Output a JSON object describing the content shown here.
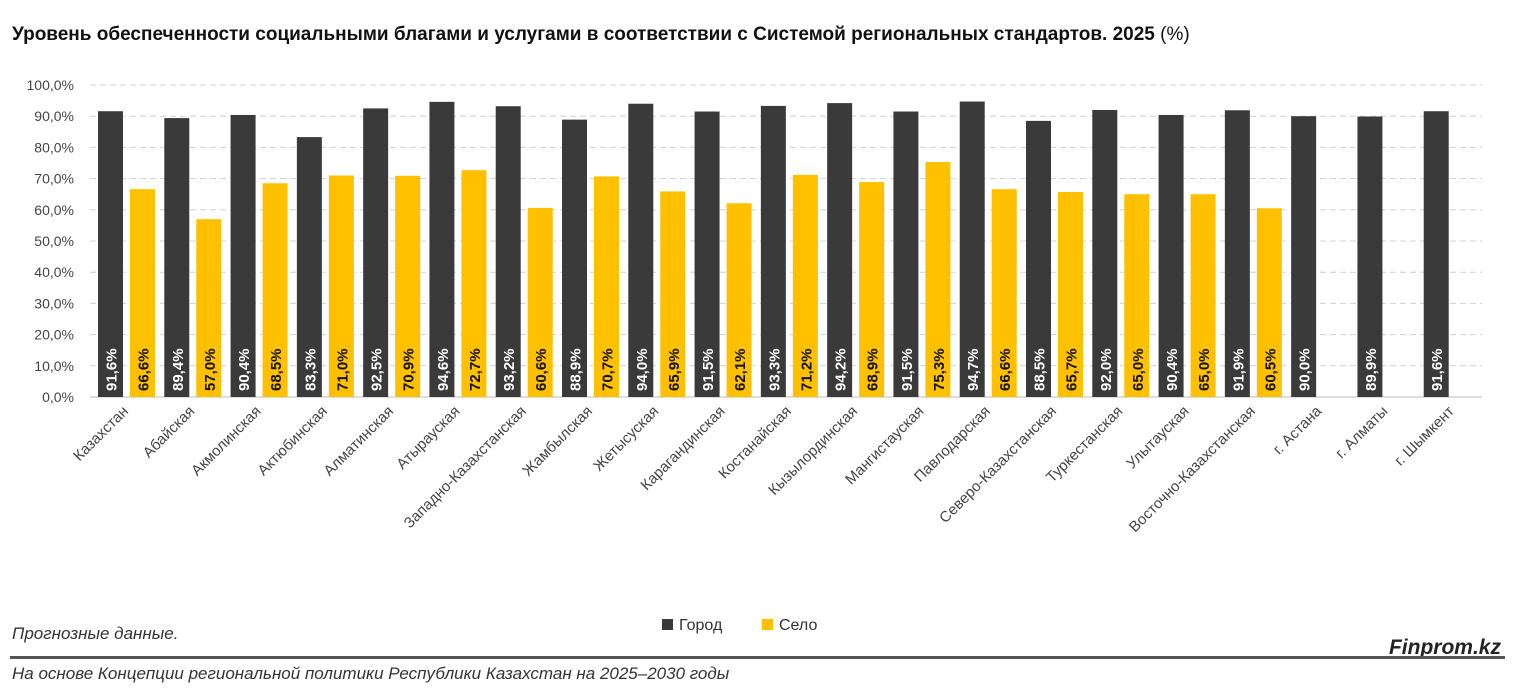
{
  "chart_data": {
    "type": "bar",
    "title": "Уровень обеспеченности социальными благами и услугами в соответствии с Системой региональных стандартов. 2025",
    "title_unit": "(%)",
    "categories": [
      "Казахстан",
      "Абайская",
      "Акмолинская",
      "Актюбинская",
      "Алматинская",
      "Атырауская",
      "Западно-Казахстанская",
      "Жамбылская",
      "Жетысуская",
      "Карагандинская",
      "Костанайская",
      "Кызылординская",
      "Мангистауская",
      "Павлодарская",
      "Северо-Казахстанская",
      "Туркестанская",
      "Улытауская",
      "Восточно-Казахстанская",
      "г. Астана",
      "г. Алматы",
      "г. Шымкент"
    ],
    "series": [
      {
        "name": "Город",
        "color": "#3a3a3a",
        "values": [
          91.6,
          89.4,
          90.4,
          83.3,
          92.5,
          94.6,
          93.2,
          88.9,
          94.0,
          91.5,
          93.3,
          94.2,
          91.5,
          94.7,
          88.5,
          92.0,
          90.4,
          91.9,
          90.0,
          89.9,
          91.6
        ]
      },
      {
        "name": "Село",
        "color": "#ffc000",
        "values": [
          66.6,
          57.0,
          68.5,
          71.0,
          70.9,
          72.7,
          60.6,
          70.7,
          65.9,
          62.1,
          71.2,
          68.9,
          75.3,
          66.6,
          65.7,
          65.0,
          65.0,
          60.5,
          null,
          null,
          null
        ]
      }
    ],
    "ylim": [
      0,
      100
    ],
    "yticks": [
      0,
      10,
      20,
      30,
      40,
      50,
      60,
      70,
      80,
      90,
      100
    ],
    "grid": true,
    "legend": "bottom"
  },
  "footer": {
    "note": "Прогнозные данные.",
    "source": "На основе Концепции региональной политики Республики Казахстан на 2025–2030 годы",
    "brand": "Finprom.kz"
  }
}
